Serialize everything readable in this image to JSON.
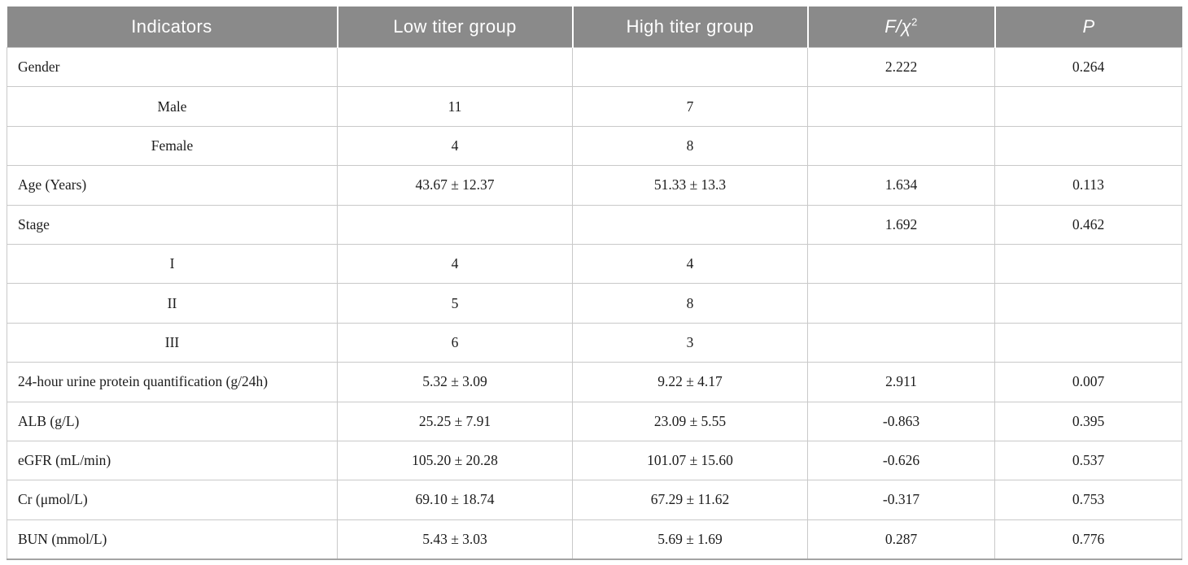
{
  "colors": {
    "header_bg": "#8a8a8a",
    "header_text": "#ffffff",
    "body_text": "#1c1c1c",
    "grid_line": "#c9c9c9",
    "bottom_rule": "#a3a3a3"
  },
  "table": {
    "columns": {
      "indicators": "Indicators",
      "low": "Low titer group",
      "high": "High titer group",
      "f_chi_main": "F/χ",
      "f_chi_sup": "2",
      "p": "P"
    },
    "rows": [
      {
        "label": "Gender",
        "low": "",
        "high": "",
        "f": "2.222",
        "p": "0.264"
      },
      {
        "label": "Male",
        "low": "11",
        "high": "7",
        "f": "",
        "p": ""
      },
      {
        "label": "Female",
        "low": "4",
        "high": "8",
        "f": "",
        "p": ""
      },
      {
        "label": "Age (Years)",
        "low": "43.67 ± 12.37",
        "high": "51.33 ± 13.3",
        "f": "1.634",
        "p": "0.113"
      },
      {
        "label": "Stage",
        "low": "",
        "high": "",
        "f": "1.692",
        "p": "0.462"
      },
      {
        "label": "I",
        "low": "4",
        "high": "4",
        "f": "",
        "p": ""
      },
      {
        "label": "II",
        "low": "5",
        "high": "8",
        "f": "",
        "p": ""
      },
      {
        "label": "III",
        "low": "6",
        "high": "3",
        "f": "",
        "p": ""
      },
      {
        "label": "24-hour urine protein quantification (g/24h)",
        "low": "5.32 ± 3.09",
        "high": "9.22 ± 4.17",
        "f": "2.911",
        "p": "0.007"
      },
      {
        "label": "ALB (g/L)",
        "low": "25.25 ± 7.91",
        "high": "23.09 ± 5.55",
        "f": "-0.863",
        "p": "0.395"
      },
      {
        "label": "eGFR (mL/min)",
        "low": "105.20 ± 20.28",
        "high": "101.07 ± 15.60",
        "f": "-0.626",
        "p": "0.537"
      },
      {
        "label": "Cr (μmol/L)",
        "low": "69.10 ± 18.74",
        "high": "67.29 ± 11.62",
        "f": "-0.317",
        "p": "0.753"
      },
      {
        "label": "BUN (mmol/L)",
        "low": "5.43 ± 3.03",
        "high": "5.69 ± 1.69",
        "f": "0.287",
        "p": "0.776"
      }
    ]
  }
}
